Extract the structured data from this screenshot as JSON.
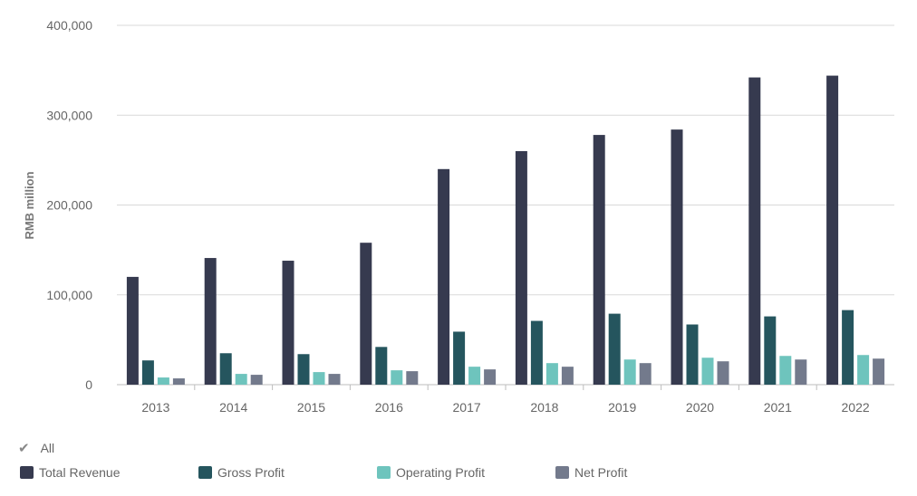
{
  "chart_data": {
    "type": "bar",
    "categories": [
      "2013",
      "2014",
      "2015",
      "2016",
      "2017",
      "2018",
      "2019",
      "2020",
      "2021",
      "2022"
    ],
    "series": [
      {
        "name": "Total Revenue",
        "color": "#363a4f",
        "values": [
          120000,
          141000,
          138000,
          158000,
          240000,
          260000,
          278000,
          284000,
          342000,
          344000
        ]
      },
      {
        "name": "Gross Profit",
        "color": "#25555e",
        "values": [
          27000,
          35000,
          34000,
          42000,
          59000,
          71000,
          79000,
          67000,
          76000,
          83000
        ]
      },
      {
        "name": "Operating Profit",
        "color": "#6ec4bd",
        "values": [
          8000,
          12000,
          14000,
          16000,
          20000,
          24000,
          28000,
          30000,
          32000,
          33000
        ]
      },
      {
        "name": "Net Profit",
        "color": "#737a8c",
        "values": [
          7000,
          11000,
          12000,
          15000,
          17000,
          20000,
          24000,
          26000,
          28000,
          29000
        ]
      }
    ],
    "ylabel": "RMB million",
    "ylim": [
      0,
      400000
    ],
    "yticks": [
      0,
      100000,
      200000,
      300000,
      400000
    ],
    "ytick_labels": [
      "0",
      "100,000",
      "200,000",
      "300,000",
      "400,000"
    ],
    "grid": true,
    "legend_position": "bottom"
  },
  "legend": {
    "all_label": "All",
    "check_icon": "✔"
  }
}
